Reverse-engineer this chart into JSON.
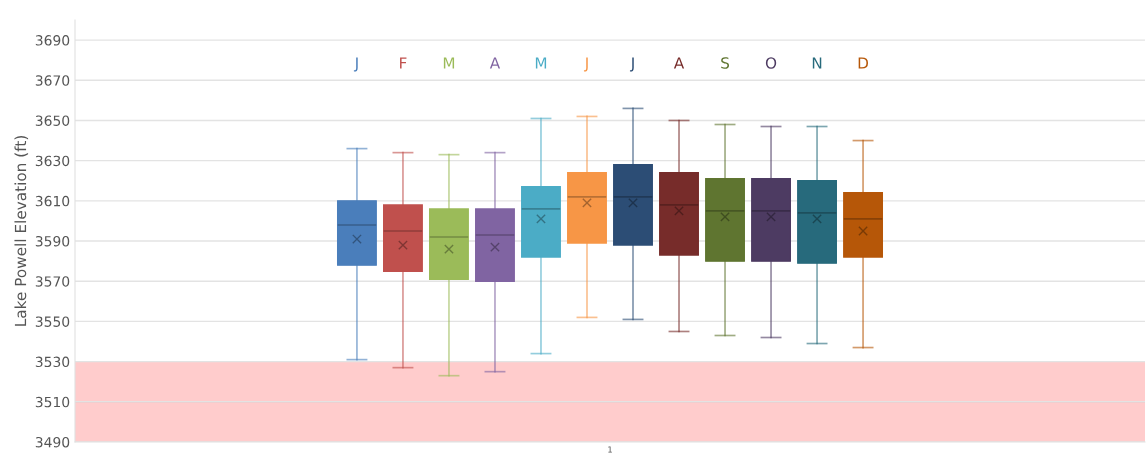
{
  "chart_data": {
    "type": "box",
    "ylabel": "Lake Powell Elevation (ft)",
    "categories": [
      "1"
    ],
    "series": [
      {
        "name": "J",
        "color": "#4a7ebb",
        "boxes": [
          {
            "low": 3531,
            "q1": 3578,
            "median": 3598,
            "q3": 3610,
            "high": 3636,
            "mean": 3591
          }
        ]
      },
      {
        "name": "F",
        "color": "#c0504d",
        "boxes": [
          {
            "low": 3527,
            "q1": 3575,
            "median": 3595,
            "q3": 3608,
            "high": 3634,
            "mean": 3588
          }
        ]
      },
      {
        "name": "M",
        "color": "#9bbb59",
        "boxes": [
          {
            "low": 3523,
            "q1": 3571,
            "median": 3592,
            "q3": 3606,
            "high": 3633,
            "mean": 3586
          }
        ]
      },
      {
        "name": "A",
        "color": "#8064a2",
        "boxes": [
          {
            "low": 3525,
            "q1": 3570,
            "median": 3593,
            "q3": 3606,
            "high": 3634,
            "mean": 3587
          }
        ]
      },
      {
        "name": "M",
        "color": "#4bacc6",
        "boxes": [
          {
            "low": 3534,
            "q1": 3582,
            "median": 3606,
            "q3": 3617,
            "high": 3651,
            "mean": 3601
          }
        ]
      },
      {
        "name": "J",
        "color": "#f79646",
        "boxes": [
          {
            "low": 3552,
            "q1": 3589,
            "median": 3612,
            "q3": 3624,
            "high": 3652,
            "mean": 3609
          }
        ]
      },
      {
        "name": "J",
        "color": "#2c4d75",
        "boxes": [
          {
            "low": 3551,
            "q1": 3588,
            "median": 3612,
            "q3": 3628,
            "high": 3656,
            "mean": 3609
          }
        ]
      },
      {
        "name": "A",
        "color": "#772c2a",
        "boxes": [
          {
            "low": 3545,
            "q1": 3583,
            "median": 3608,
            "q3": 3624,
            "high": 3650,
            "mean": 3605
          }
        ]
      },
      {
        "name": "S",
        "color": "#5f7530",
        "boxes": [
          {
            "low": 3543,
            "q1": 3580,
            "median": 3605,
            "q3": 3621,
            "high": 3648,
            "mean": 3602
          }
        ]
      },
      {
        "name": "O",
        "color": "#4d3b62",
        "boxes": [
          {
            "low": 3542,
            "q1": 3580,
            "median": 3605,
            "q3": 3621,
            "high": 3647,
            "mean": 3602
          }
        ]
      },
      {
        "name": "N",
        "color": "#276a7c",
        "boxes": [
          {
            "low": 3539,
            "q1": 3579,
            "median": 3604,
            "q3": 3620,
            "high": 3647,
            "mean": 3601
          }
        ]
      },
      {
        "name": "D",
        "color": "#b65708",
        "boxes": [
          {
            "low": 3537,
            "q1": 3582,
            "median": 3601,
            "q3": 3614,
            "high": 3640,
            "mean": 3595
          }
        ]
      }
    ],
    "ylim": [
      3490,
      3700
    ],
    "yticks": [
      3490,
      3510,
      3530,
      3550,
      3570,
      3590,
      3610,
      3630,
      3650,
      3670,
      3690
    ],
    "grid": "y",
    "bands": [
      {
        "axis": "y",
        "from": 3490,
        "to": 3530,
        "color": "#ffcccc"
      }
    ],
    "ref_lines": [
      {
        "axis": "y",
        "value": 3510,
        "color": "#f0a8a8"
      }
    ]
  }
}
